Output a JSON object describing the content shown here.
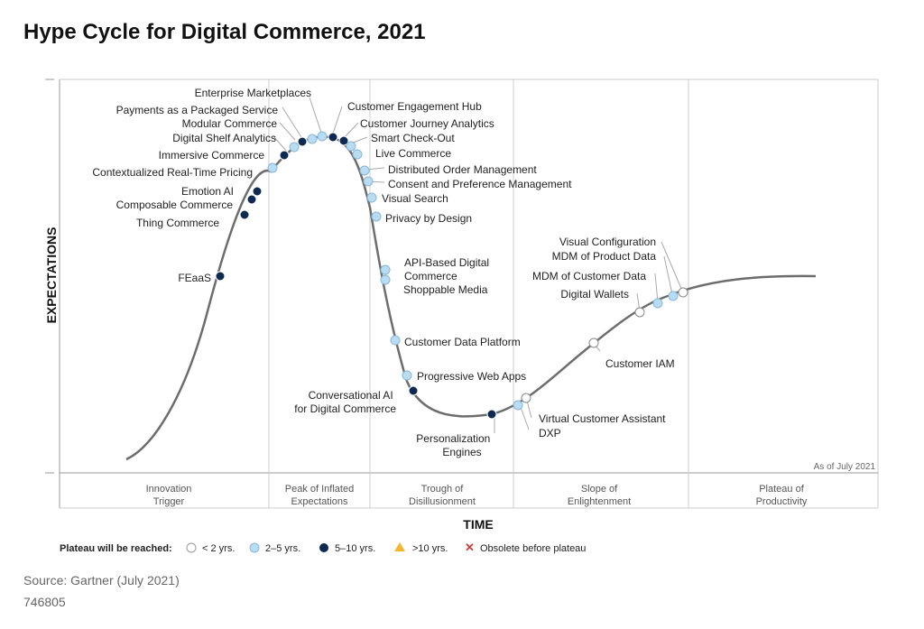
{
  "title": "Hype Cycle for Digital Commerce, 2021",
  "source": "Source: Gartner (July 2021)",
  "doc_id": "746805",
  "y_axis_label": "EXPECTATIONS",
  "x_axis_label": "TIME",
  "as_of": "As of July 2021",
  "phases": [
    {
      "line1": "Innovation",
      "line2": "Trigger"
    },
    {
      "line1": "Peak of Inflated",
      "line2": "Expectations"
    },
    {
      "line1": "Trough of",
      "line2": "Disillusionment"
    },
    {
      "line1": "Slope of",
      "line2": "Enlightenment"
    },
    {
      "line1": "Plateau of",
      "line2": "Productivity"
    }
  ],
  "legend": {
    "title": "Plateau will be reached:",
    "items": [
      {
        "label": "< 2 yrs.",
        "category": "lt2"
      },
      {
        "label": "2–5 yrs.",
        "category": "2to5"
      },
      {
        "label": "5–10 yrs.",
        "category": "5to10"
      },
      {
        "label": ">10 yrs.",
        "category": "gt10"
      },
      {
        "label": "Obsolete before plateau",
        "category": "obsolete"
      }
    ]
  },
  "category_colors": {
    "lt2": "#ffffff",
    "2to5": "#b8ddf2",
    "5to10": "#0e2a52",
    "gt10": "#f2b630",
    "obsolete": "#d33a3a"
  },
  "technologies": [
    {
      "name": "FEaaS",
      "category": "5to10"
    },
    {
      "name": "Thing Commerce",
      "category": "5to10"
    },
    {
      "name": "Composable Commerce",
      "category": "5to10"
    },
    {
      "name": "Emotion AI",
      "category": "5to10"
    },
    {
      "name": "Contextualized Real-Time Pricing",
      "category": "2to5"
    },
    {
      "name": "Immersive Commerce",
      "category": "5to10"
    },
    {
      "name": "Digital Shelf Analytics",
      "category": "2to5"
    },
    {
      "name": "Modular Commerce",
      "category": "5to10"
    },
    {
      "name": "Payments as a Packaged Service",
      "category": "2to5"
    },
    {
      "name": "Enterprise Marketplaces",
      "category": "2to5"
    },
    {
      "name": "Customer Engagement Hub",
      "category": "5to10"
    },
    {
      "name": "Customer Journey Analytics",
      "category": "5to10"
    },
    {
      "name": "Smart Check-Out",
      "category": "2to5"
    },
    {
      "name": "Live Commerce",
      "category": "2to5"
    },
    {
      "name": "Distributed Order Management",
      "category": "2to5"
    },
    {
      "name": "Consent and Preference Management",
      "category": "2to5"
    },
    {
      "name": "Visual Search",
      "category": "2to5"
    },
    {
      "name": "Privacy by Design",
      "category": "2to5"
    },
    {
      "name": "API-Based Digital Commerce",
      "category": "2to5"
    },
    {
      "name": "Shoppable Media",
      "category": "2to5"
    },
    {
      "name": "Customer Data Platform",
      "category": "2to5"
    },
    {
      "name": "Progressive Web Apps",
      "category": "2to5"
    },
    {
      "name": "Conversational AI for Digital Commerce",
      "category": "5to10"
    },
    {
      "name": "Personalization Engines",
      "category": "5to10"
    },
    {
      "name": "Virtual Customer Assistant",
      "category": "2to5"
    },
    {
      "name": "DXP",
      "category": "lt2"
    },
    {
      "name": "Customer IAM",
      "category": "lt2"
    },
    {
      "name": "Digital Wallets",
      "category": "lt2"
    },
    {
      "name": "MDM of Customer Data",
      "category": "2to5"
    },
    {
      "name": "MDM of Product Data",
      "category": "2to5"
    },
    {
      "name": "Visual Configuration",
      "category": "lt2"
    }
  ]
}
